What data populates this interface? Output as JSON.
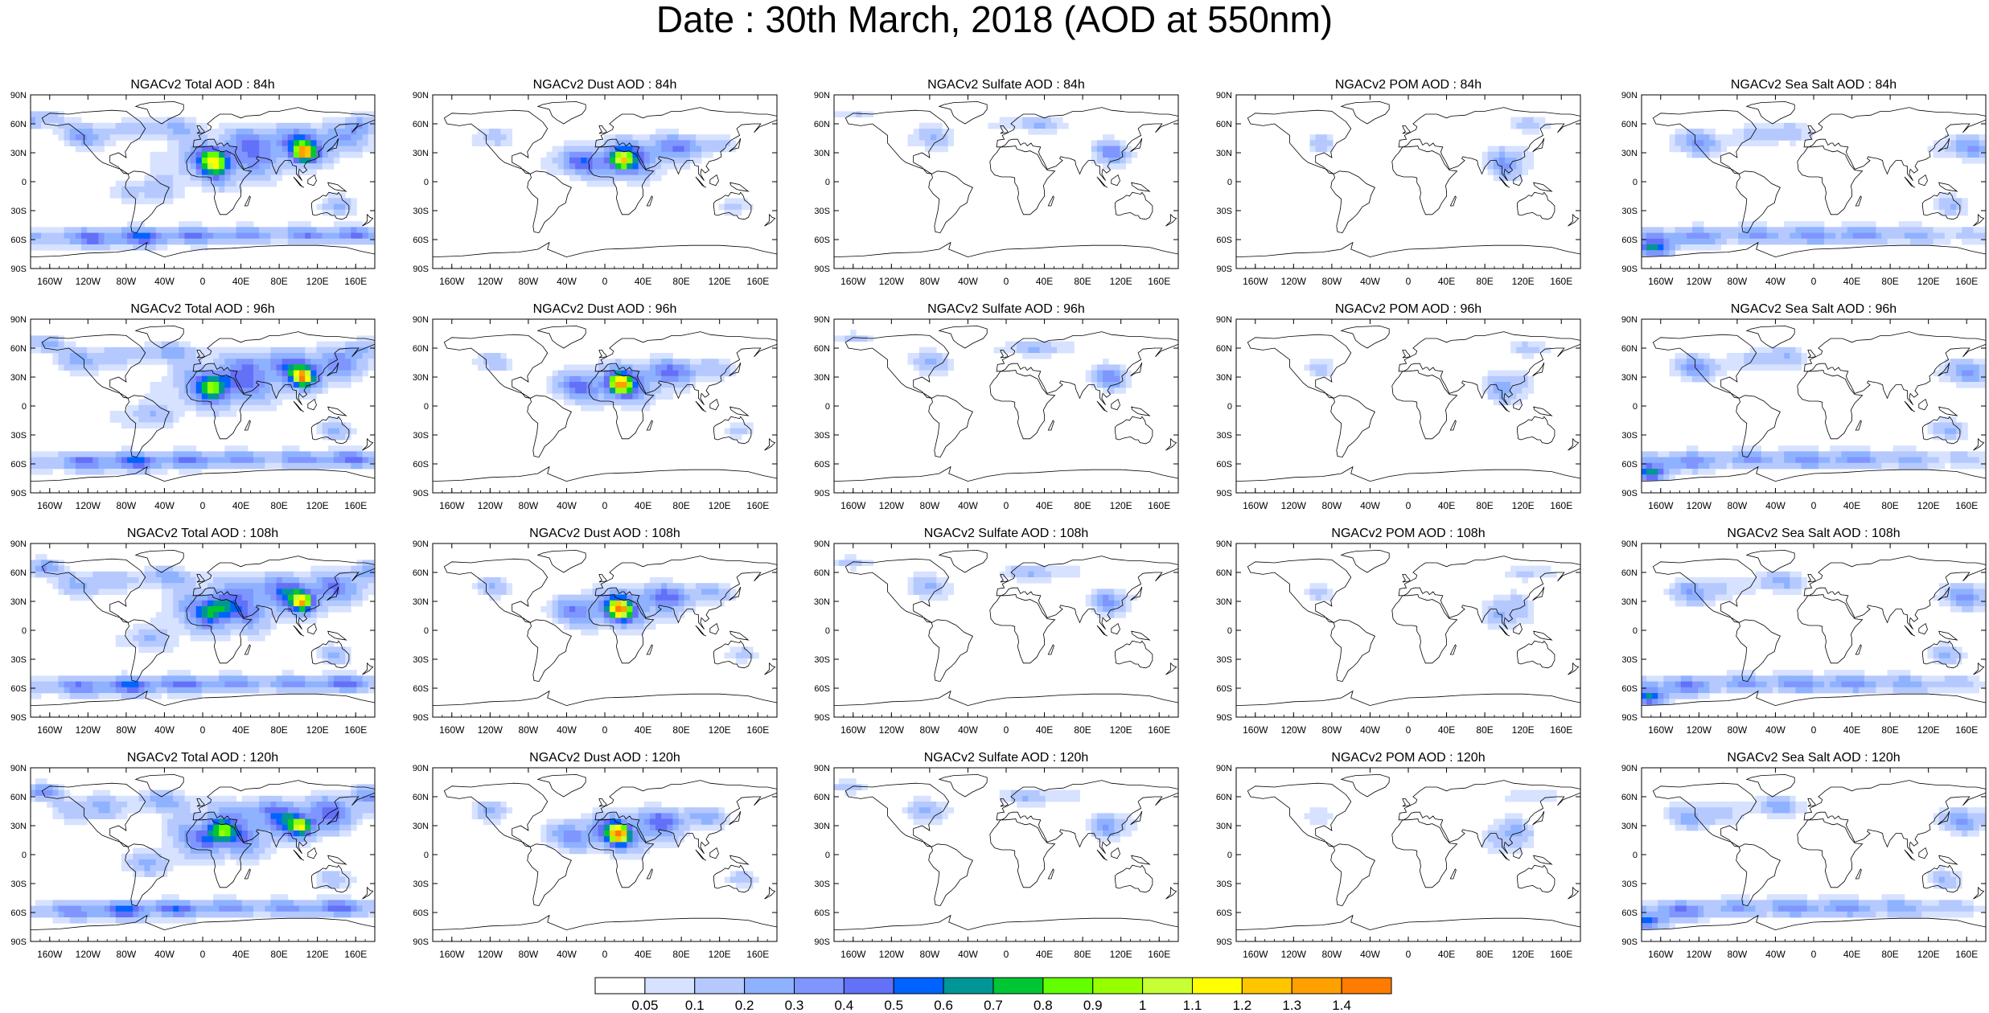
{
  "title": "Date : 30th March, 2018 (AOD at 550nm)",
  "lat_labels": [
    "90N",
    "60N",
    "30N",
    "0",
    "30S",
    "60S",
    "90S"
  ],
  "lon_labels": [
    "160W",
    "120W",
    "80W",
    "40W",
    "0",
    "40E",
    "80E",
    "120E",
    "160E"
  ],
  "panels": [
    [
      "NGACv2 Total AOD : 84h",
      "NGACv2 Dust AOD : 84h",
      "NGACv2 Sulfate AOD : 84h",
      "NGACv2 POM AOD : 84h",
      "NGACv2 Sea Salt AOD : 84h"
    ],
    [
      "NGACv2 Total AOD : 96h",
      "NGACv2 Dust AOD : 96h",
      "NGACv2 Sulfate AOD : 96h",
      "NGACv2 POM AOD : 96h",
      "NGACv2 Sea Salt AOD : 96h"
    ],
    [
      "NGACv2 Total AOD : 108h",
      "NGACv2 Dust AOD : 108h",
      "NGACv2 Sulfate AOD : 108h",
      "NGACv2 POM AOD : 108h",
      "NGACv2 Sea Salt AOD : 108h"
    ],
    [
      "NGACv2 Total AOD : 120h",
      "NGACv2 Dust AOD : 120h",
      "NGACv2 Sulfate AOD : 120h",
      "NGACv2 POM AOD : 120h",
      "NGACv2 Sea Salt  AOD : 120h"
    ]
  ],
  "colorbar": {
    "labels": [
      "0.05",
      "0.1",
      "0.2",
      "0.3",
      "0.4",
      "0.5",
      "0.6",
      "0.7",
      "0.8",
      "0.9",
      "1",
      "1.1",
      "1.2",
      "1.3",
      "1.4"
    ],
    "colors": [
      "#ffffff",
      "#d6e2ff",
      "#b5c9ff",
      "#8eb2ff",
      "#7f96ff",
      "#6370f8",
      "#0063ff",
      "#009696",
      "#00c633",
      "#63ff00",
      "#96ff00",
      "#c6ff33",
      "#ffff00",
      "#ffc600",
      "#ffa000",
      "#ff7c00",
      "#ff1900"
    ]
  }
}
